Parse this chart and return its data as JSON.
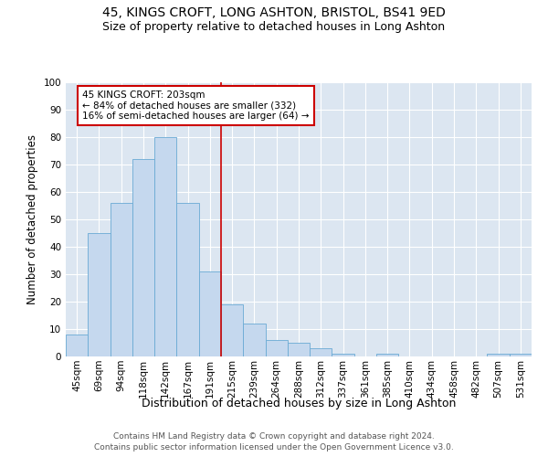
{
  "title_line1": "45, KINGS CROFT, LONG ASHTON, BRISTOL, BS41 9ED",
  "title_line2": "Size of property relative to detached houses in Long Ashton",
  "xlabel": "Distribution of detached houses by size in Long Ashton",
  "ylabel": "Number of detached properties",
  "categories": [
    "45sqm",
    "69sqm",
    "94sqm",
    "118sqm",
    "142sqm",
    "167sqm",
    "191sqm",
    "215sqm",
    "239sqm",
    "264sqm",
    "288sqm",
    "312sqm",
    "337sqm",
    "361sqm",
    "385sqm",
    "410sqm",
    "434sqm",
    "458sqm",
    "482sqm",
    "507sqm",
    "531sqm"
  ],
  "values": [
    8,
    45,
    56,
    72,
    80,
    56,
    31,
    19,
    12,
    6,
    5,
    3,
    1,
    0,
    1,
    0,
    0,
    0,
    0,
    1,
    1
  ],
  "bar_color": "#c5d8ee",
  "bar_edge_color": "#6aaad4",
  "bg_color": "#dce6f1",
  "grid_color": "#ffffff",
  "vline_color": "#cc0000",
  "annotation_text": "45 KINGS CROFT: 203sqm\n← 84% of detached houses are smaller (332)\n16% of semi-detached houses are larger (64) →",
  "annotation_box_color": "#cc0000",
  "ylim": [
    0,
    100
  ],
  "footer_line1": "Contains HM Land Registry data © Crown copyright and database right 2024.",
  "footer_line2": "Contains public sector information licensed under the Open Government Licence v3.0.",
  "title_fontsize": 10,
  "subtitle_fontsize": 9,
  "tick_fontsize": 7.5,
  "ylabel_fontsize": 8.5,
  "xlabel_fontsize": 9,
  "footer_fontsize": 6.5,
  "annotation_fontsize": 7.5
}
